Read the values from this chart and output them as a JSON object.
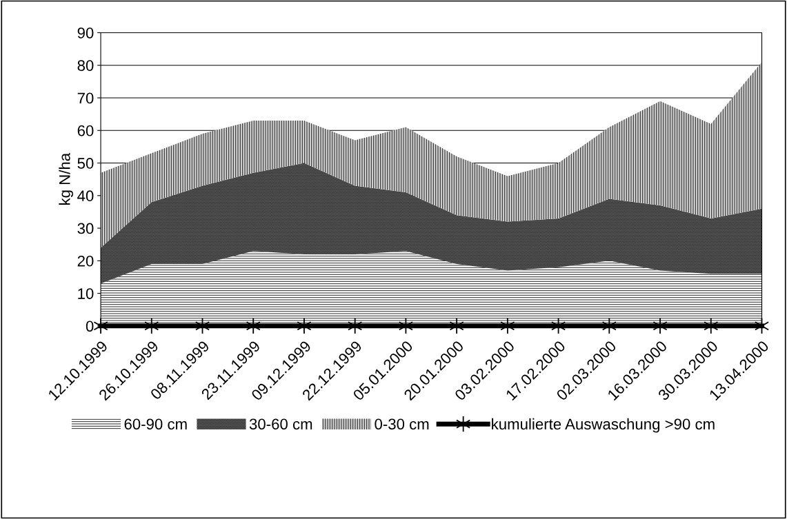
{
  "chart_data": {
    "type": "area",
    "stacked": true,
    "ylabel": "kg N/ha",
    "categories": [
      "12.10.1999",
      "26.10.1999",
      "08.11.1999",
      "23.11.1999",
      "09.12.1999",
      "22.12.1999",
      "05.01.2000",
      "20.01.2000",
      "03.02.2000",
      "17.02.2000",
      "02.03.2000",
      "16.03.2000",
      "30.03.2000",
      "13.04.2000"
    ],
    "series": [
      {
        "name": "60-90 cm",
        "color": "#ffffff",
        "values": [
          13,
          19,
          19,
          23,
          22,
          22,
          23,
          19,
          17,
          18,
          20,
          17,
          16,
          16
        ]
      },
      {
        "name": "30-60 cm",
        "color": "#5a5a5a",
        "values": [
          11,
          19,
          24,
          24,
          28,
          21,
          18,
          15,
          15,
          15,
          19,
          20,
          17,
          20
        ]
      },
      {
        "name": "0-30 cm",
        "color": "#d0d0d0",
        "values": [
          23,
          15,
          16,
          16,
          13,
          14,
          20,
          18,
          14,
          17,
          22,
          32,
          29,
          45
        ]
      },
      {
        "name": "kumulierte Auswaschung >90 cm",
        "type": "line",
        "color": "#000000",
        "marker": "cross",
        "values": [
          0,
          0,
          0,
          0,
          0,
          0,
          0,
          0,
          0,
          0,
          0,
          0,
          0,
          0
        ]
      }
    ],
    "ylim": [
      0,
      90
    ],
    "yticks": [
      0,
      10,
      20,
      30,
      40,
      50,
      60,
      70,
      80,
      90
    ],
    "grid": "y",
    "legend": "bottom"
  }
}
